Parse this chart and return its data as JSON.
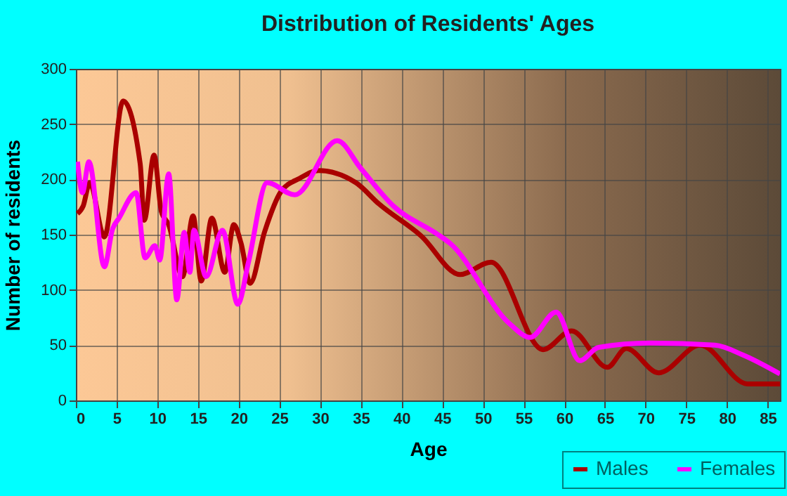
{
  "chart_data": {
    "type": "line",
    "title": "Distribution of Residents' Ages",
    "xlabel": "Age",
    "ylabel": "Number of residents",
    "xlim": [
      0,
      86.5
    ],
    "xticks": [
      0,
      5,
      10,
      15,
      20,
      25,
      30,
      35,
      40,
      45,
      50,
      55,
      60,
      65,
      70,
      75,
      80,
      85
    ],
    "ylim": [
      0,
      300
    ],
    "yticks": [
      0,
      50,
      100,
      150,
      200,
      250,
      300
    ],
    "grid": true,
    "legend": "bottom right",
    "series": [
      {
        "name": "Males",
        "color": "#aa0000",
        "x": [
          0.2,
          0.9,
          1.7,
          3.5,
          5.8,
          7.9,
          8.4,
          9.6,
          10.5,
          11.4,
          13.1,
          14.4,
          15.4,
          16.7,
          18.3,
          19.4,
          20.3,
          21.4,
          23.2,
          25.2,
          27.5,
          29.8,
          34.4,
          37.2,
          42.4,
          47.2,
          51,
          57.4,
          60.9,
          65.3,
          67.6,
          71.6,
          76.7,
          82.5,
          86.5
        ],
        "values": [
          169,
          176,
          197,
          148,
          271,
          214,
          163,
          222,
          171,
          159,
          112,
          167,
          108,
          165,
          116,
          159,
          142,
          106,
          153,
          189,
          201,
          208,
          197,
          178,
          149,
          114,
          125,
          46,
          63,
          30,
          47,
          25,
          50,
          15,
          15
        ]
      },
      {
        "name": "Females",
        "color": "#ff00ff",
        "x": [
          0.2,
          0.8,
          1.6,
          3.5,
          4.5,
          5.3,
          7.4,
          8.5,
          9.7,
          10.3,
          11.4,
          12.4,
          13.3,
          14.0,
          14.5,
          16.0,
          18.0,
          19.9,
          21.2,
          23.5,
          26.9,
          32.1,
          35,
          39,
          44.5,
          46,
          53.2,
          55.8,
          59,
          61.9,
          64.2,
          70.5,
          78.5,
          82,
          86.5
        ],
        "values": [
          216,
          188,
          216,
          121,
          155,
          165,
          188,
          129,
          140,
          127,
          205,
          91,
          152,
          116,
          154,
          112,
          154,
          87,
          125,
          197,
          186,
          235,
          210,
          176,
          150,
          142,
          70,
          57,
          80,
          36,
          48,
          52,
          50,
          41,
          24
        ]
      }
    ]
  }
}
